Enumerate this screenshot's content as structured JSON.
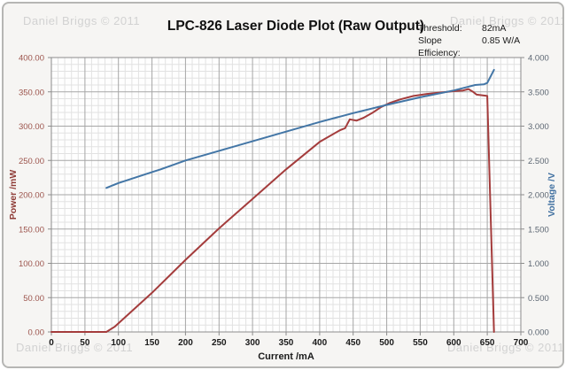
{
  "watermark": "Daniel Briggs © 2011",
  "title": "LPC-826 Laser Diode Plot (Raw Output)",
  "info": {
    "threshold_label": "Threshold:",
    "threshold_value": "82mA",
    "slope_label": "Slope Efficiency:",
    "slope_value": "0.85 W/A"
  },
  "chart_data": {
    "type": "line",
    "title": "LPC-826 Laser Diode Plot (Raw Output)",
    "xlabel": "Current /mA",
    "ylabel_left": "Power /mW",
    "ylabel_right": "Voltage /V",
    "xlim": [
      0,
      700
    ],
    "ylim_left": [
      0,
      400
    ],
    "ylim_right": [
      0,
      4
    ],
    "x_major_step": 50,
    "x_minor_step": 10,
    "y_left_major_step": 50,
    "y_left_minor_step": 10,
    "grid": true,
    "legend_position": "none",
    "x_ticks": [
      "0",
      "50",
      "100",
      "150",
      "200",
      "250",
      "300",
      "350",
      "400",
      "450",
      "500",
      "550",
      "600",
      "650",
      "700"
    ],
    "y_left_ticks": [
      "0.00",
      "50.00",
      "100.00",
      "150.00",
      "200.00",
      "250.00",
      "300.00",
      "350.00",
      "400.00"
    ],
    "y_right_ticks": [
      "0.000",
      "0.500",
      "1.000",
      "1.500",
      "2.000",
      "2.500",
      "3.000",
      "3.500",
      "4.000"
    ],
    "series": [
      {
        "name": "Power /mW",
        "axis": "left",
        "color": "#a43c3c",
        "points": [
          [
            0,
            0
          ],
          [
            82,
            0
          ],
          [
            95,
            8
          ],
          [
            150,
            57
          ],
          [
            200,
            105
          ],
          [
            250,
            151
          ],
          [
            300,
            194
          ],
          [
            350,
            237
          ],
          [
            400,
            277
          ],
          [
            430,
            294
          ],
          [
            438,
            297
          ],
          [
            445,
            310
          ],
          [
            455,
            308
          ],
          [
            465,
            312
          ],
          [
            478,
            319
          ],
          [
            492,
            328
          ],
          [
            505,
            334
          ],
          [
            520,
            339
          ],
          [
            540,
            344
          ],
          [
            560,
            347
          ],
          [
            580,
            349
          ],
          [
            600,
            351
          ],
          [
            614,
            352
          ],
          [
            622,
            354
          ],
          [
            629,
            350
          ],
          [
            634,
            346
          ],
          [
            642,
            345
          ],
          [
            650,
            344
          ],
          [
            660,
            0
          ]
        ]
      },
      {
        "name": "Voltage /V",
        "axis": "right",
        "color": "#4376a6",
        "points": [
          [
            82,
            2.1
          ],
          [
            100,
            2.17
          ],
          [
            150,
            2.33
          ],
          [
            163,
            2.37
          ],
          [
            200,
            2.5
          ],
          [
            250,
            2.64
          ],
          [
            300,
            2.78
          ],
          [
            350,
            2.92
          ],
          [
            400,
            3.06
          ],
          [
            450,
            3.19
          ],
          [
            500,
            3.31
          ],
          [
            550,
            3.42
          ],
          [
            600,
            3.52
          ],
          [
            620,
            3.57
          ],
          [
            632,
            3.6
          ],
          [
            645,
            3.61
          ],
          [
            650,
            3.63
          ],
          [
            660,
            3.82
          ]
        ]
      }
    ]
  },
  "colors": {
    "power_axis_label": "#9c544c",
    "power_axis_title": "#8e3b36",
    "voltage_axis_label": "#5c6672",
    "voltage_axis_title": "#3f6fa0",
    "x_axis_label": "#1a1a1a",
    "grid_minor": "#e2e2e2",
    "grid_major": "#a6a6a6",
    "frame": "#8c8c8c",
    "plot_background": "#fefefe"
  }
}
